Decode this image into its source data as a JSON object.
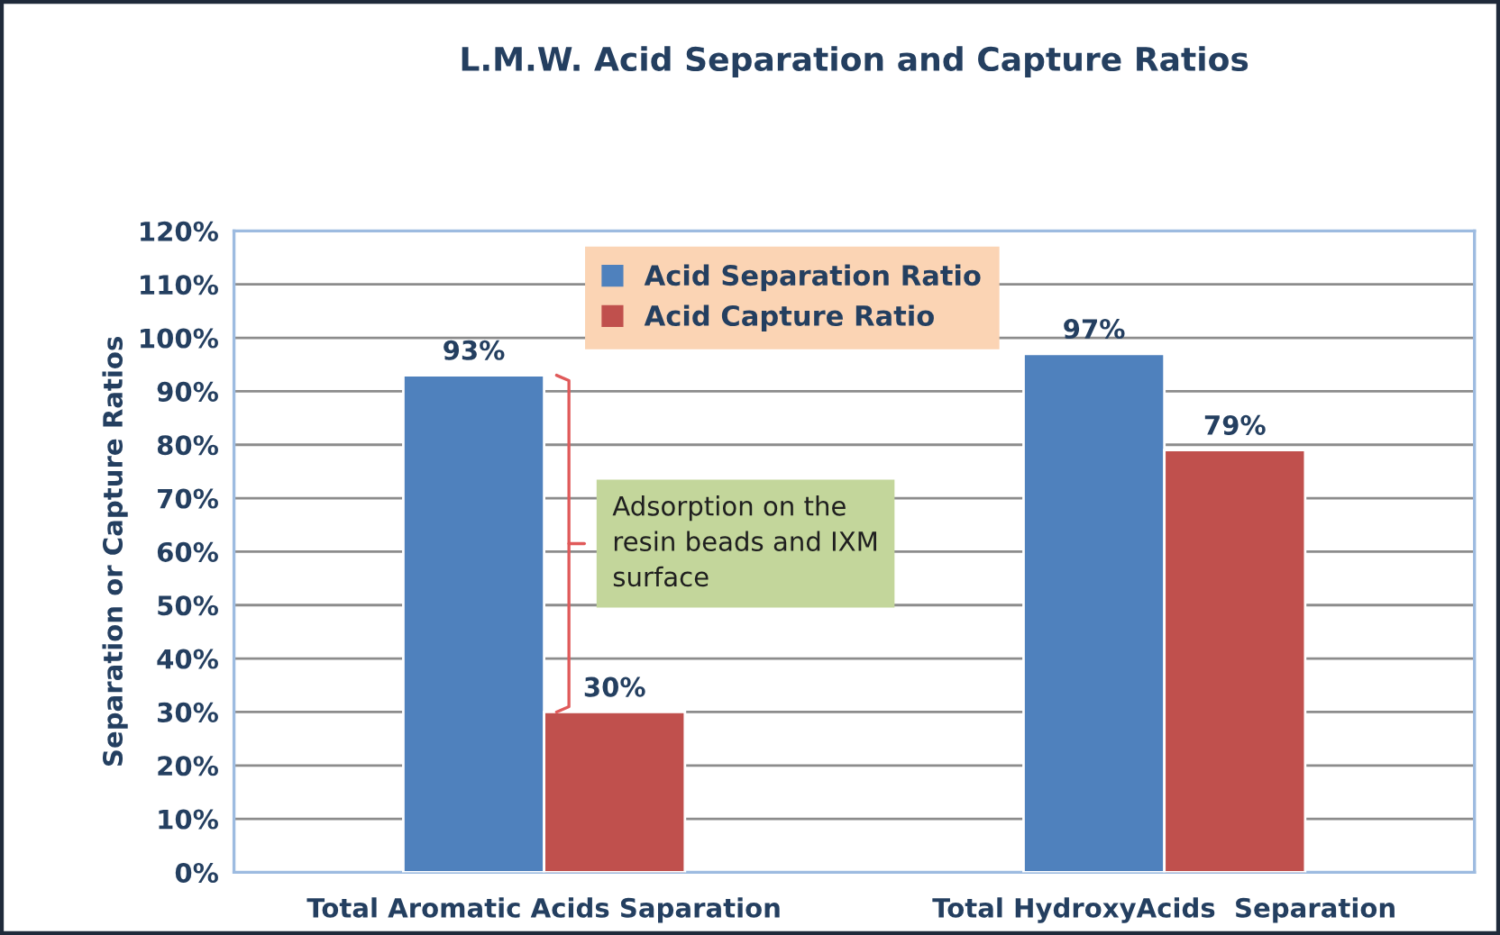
{
  "chart_data": {
    "type": "bar",
    "title": "L.M.W. Acid Separation and Capture Ratios",
    "ylabel": "Separation or Capture Ratios",
    "categories": [
      "Total Aromatic Acids Saparation",
      "Total HydroxyAcids  Separation"
    ],
    "series": [
      {
        "name": "Acid Separation Ratio",
        "color": "#4f81bd",
        "values": [
          93,
          97
        ],
        "value_labels": [
          "93%",
          "97%"
        ]
      },
      {
        "name": "Acid Capture Ratio",
        "color": "#c0504d",
        "values": [
          30,
          79
        ],
        "value_labels": [
          "30%",
          "79%"
        ]
      }
    ],
    "ylim": [
      0,
      120
    ],
    "yticks": [
      {
        "value": 0,
        "label": "0%"
      },
      {
        "value": 10,
        "label": "10%"
      },
      {
        "value": 20,
        "label": "20%"
      },
      {
        "value": 30,
        "label": "30%"
      },
      {
        "value": 40,
        "label": "40%"
      },
      {
        "value": 50,
        "label": "50%"
      },
      {
        "value": 60,
        "label": "60%"
      },
      {
        "value": 70,
        "label": "70%"
      },
      {
        "value": 80,
        "label": "80%"
      },
      {
        "value": 90,
        "label": "90%"
      },
      {
        "value": 100,
        "label": "100%"
      },
      {
        "value": 110,
        "label": "110%"
      },
      {
        "value": 120,
        "label": "120%"
      }
    ],
    "grid": "y",
    "legend": "top",
    "annotations": [
      {
        "text": "Adsorption on the\nresin beads and IXM\nsurface",
        "x": "Total Aromatic Acids Saparation",
        "y": 61.5
      }
    ]
  }
}
